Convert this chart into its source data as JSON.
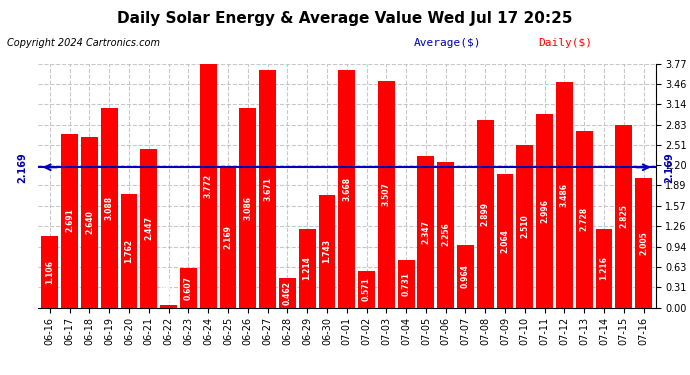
{
  "title": "Daily Solar Energy & Average Value Wed Jul 17 20:25",
  "copyright": "Copyright 2024 Cartronics.com",
  "legend_average": "Average($)",
  "legend_daily": "Daily($)",
  "average_value": 2.169,
  "average_str": "2.169",
  "categories": [
    "06-16",
    "06-17",
    "06-18",
    "06-19",
    "06-20",
    "06-21",
    "06-22",
    "06-23",
    "06-24",
    "06-25",
    "06-26",
    "06-27",
    "06-28",
    "06-29",
    "06-30",
    "07-01",
    "07-02",
    "07-03",
    "07-04",
    "07-05",
    "07-06",
    "07-07",
    "07-08",
    "07-09",
    "07-10",
    "07-11",
    "07-12",
    "07-13",
    "07-14",
    "07-15",
    "07-16"
  ],
  "values": [
    1.106,
    2.691,
    2.64,
    3.088,
    1.762,
    2.447,
    0.039,
    0.607,
    3.772,
    2.169,
    3.086,
    3.671,
    0.462,
    1.214,
    1.743,
    3.668,
    0.571,
    3.507,
    0.731,
    2.347,
    2.256,
    0.964,
    2.899,
    2.064,
    2.51,
    2.996,
    3.486,
    2.728,
    1.216,
    2.825,
    2.005
  ],
  "bar_color": "#ff0000",
  "average_line_color": "#0000bb",
  "average_label_color": "#0000bb",
  "title_color": "#000000",
  "copyright_color": "#000000",
  "legend_average_color": "#0000bb",
  "legend_daily_color": "#ff0000",
  "background_color": "#ffffff",
  "grid_color": "#bbbbbb",
  "ytick_labels": [
    "0.00",
    "0.31",
    "0.63",
    "0.94",
    "1.26",
    "1.57",
    "1.89",
    "2.20",
    "2.51",
    "2.83",
    "3.14",
    "3.46",
    "3.77"
  ],
  "ytick_values": [
    0.0,
    0.31,
    0.63,
    0.94,
    1.26,
    1.57,
    1.89,
    2.2,
    2.51,
    2.83,
    3.14,
    3.46,
    3.77
  ],
  "ylim": [
    0.0,
    3.77
  ],
  "title_fontsize": 11,
  "copyright_fontsize": 7,
  "bar_label_fontsize": 5.5,
  "tick_fontsize": 7,
  "legend_fontsize": 8
}
